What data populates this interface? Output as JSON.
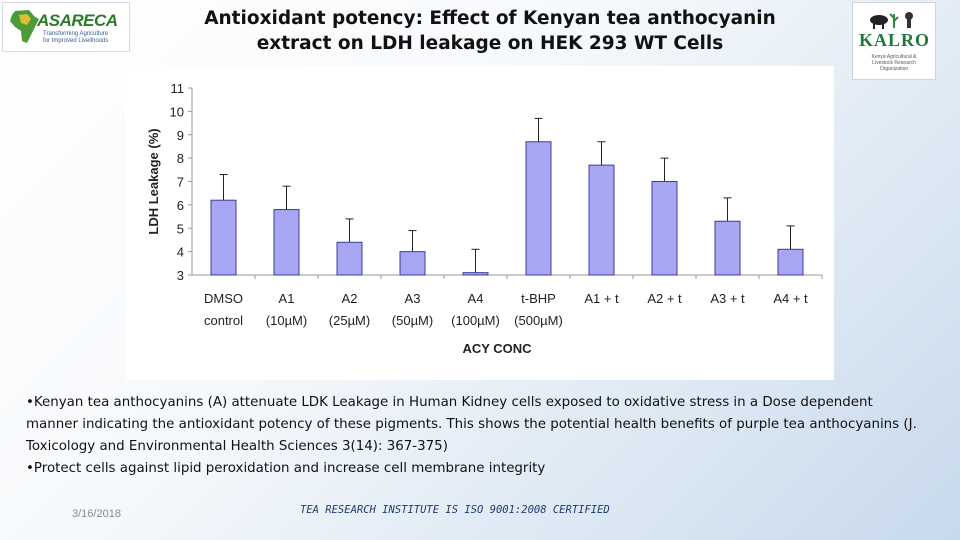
{
  "logos": {
    "left": {
      "brand": "ASARECA",
      "tagline_1": "Transforming Agriculture",
      "tagline_2": "for Improved Livelihoods",
      "icon": "africa-map-icon"
    },
    "right": {
      "brand": "KALRO",
      "subtitle": "Kenya Agricultural & Livestock Research Organization",
      "icon": "livestock-crest-icon"
    }
  },
  "title_line1": "Antioxidant potency: Effect of Kenyan tea anthocyanin",
  "title_line2": "extract on LDH leakage on HEK 293 WT Cells",
  "colors": {
    "bar_fill": "#a6a6f2",
    "bar_stroke": "#3c3c9c",
    "axis": "#999999"
  },
  "chart_data": {
    "type": "bar",
    "title": "",
    "xlabel": "ACY CONC",
    "ylabel": "LDH Leakage (%)",
    "ylim": [
      3,
      11
    ],
    "yticks": [
      3,
      4,
      5,
      6,
      7,
      8,
      9,
      10,
      11
    ],
    "grid": false,
    "categories": [
      [
        "DMSO",
        "control"
      ],
      [
        "A1",
        "(10µM)"
      ],
      [
        "A2",
        "(25µM)"
      ],
      [
        "A3",
        "(50µM)"
      ],
      [
        "A4",
        "(100µM)"
      ],
      [
        "t-BHP",
        "(500µM)"
      ],
      [
        "A1 + t",
        ""
      ],
      [
        "A2 + t",
        ""
      ],
      [
        "A3 + t",
        ""
      ],
      [
        "A4 + t",
        ""
      ]
    ],
    "values": [
      6.2,
      5.8,
      4.4,
      4.0,
      3.1,
      8.7,
      7.7,
      7.0,
      5.3,
      4.1
    ],
    "error": [
      1.1,
      1.0,
      1.0,
      0.9,
      1.0,
      1.0,
      1.0,
      1.0,
      1.0,
      1.0
    ]
  },
  "bullets": {
    "b1": "•Kenyan tea anthocyanins (A) attenuate LDK Leakage in Human Kidney cells exposed to oxidative stress in a Dose dependent manner indicating the antioxidant potency of these pigments. This shows the potential health benefits of purple tea anthocyanins (J. Toxicology and Environmental Health Sciences 3(14): 367-375)",
    "b2": "•Protect cells against lipid peroxidation and increase cell membrane integrity"
  },
  "date": "3/16/2018",
  "footer": "TEA RESEARCH INSTITUTE IS ISO 9001:2008 CERTIFIED"
}
